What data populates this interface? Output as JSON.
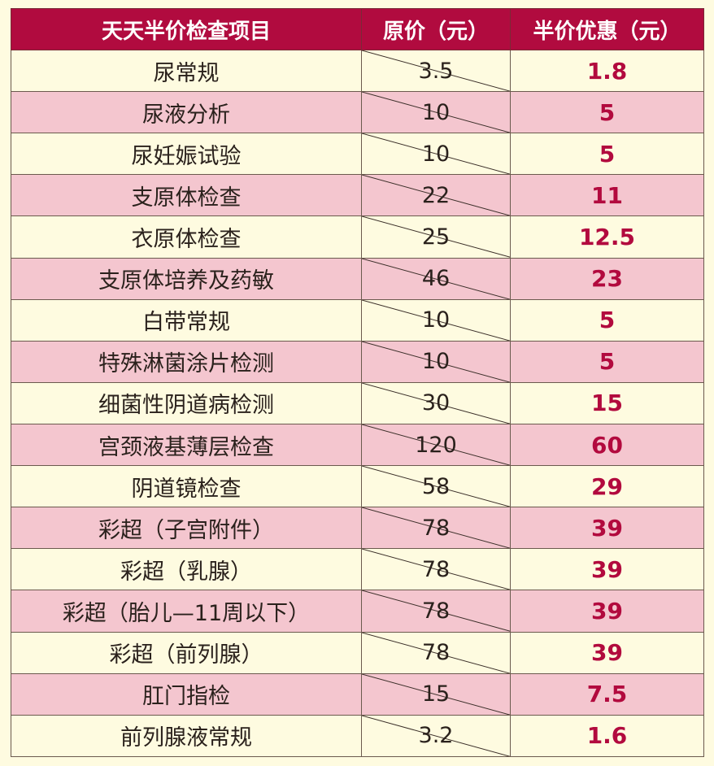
{
  "header": {
    "col_item": "天天半价检查项目",
    "col_original": "原价（元）",
    "col_half": "半价优惠（元）"
  },
  "colors": {
    "header_bg": "#b10b3f",
    "row_light": "#fefbe0",
    "row_pink": "#f4c6cf",
    "half_price_text": "#b20a3e"
  },
  "rows": [
    {
      "name": "尿常规",
      "original": "3.5",
      "half": "1.8"
    },
    {
      "name": "尿液分析",
      "original": "10",
      "half": "5"
    },
    {
      "name": "尿妊娠试验",
      "original": "10",
      "half": "5"
    },
    {
      "name": "支原体检查",
      "original": "22",
      "half": "11"
    },
    {
      "name": "衣原体检查",
      "original": "25",
      "half": "12.5"
    },
    {
      "name": "支原体培养及药敏",
      "original": "46",
      "half": "23"
    },
    {
      "name": "白带常规",
      "original": "10",
      "half": "5"
    },
    {
      "name": "特殊淋菌涂片检测",
      "original": "10",
      "half": "5"
    },
    {
      "name": "细菌性阴道病检测",
      "original": "30",
      "half": "15"
    },
    {
      "name": "宫颈液基薄层检查",
      "original": "120",
      "half": "60"
    },
    {
      "name": "阴道镜检查",
      "original": "58",
      "half": "29"
    },
    {
      "name": "彩超（子宫附件）",
      "original": "78",
      "half": "39"
    },
    {
      "name": "彩超（乳腺）",
      "original": "78",
      "half": "39"
    },
    {
      "name": "彩超（胎儿—11周以下）",
      "original": "78",
      "half": "39"
    },
    {
      "name": "彩超（前列腺）",
      "original": "78",
      "half": "39"
    },
    {
      "name": "肛门指检",
      "original": "15",
      "half": "7.5"
    },
    {
      "name": "前列腺液常规",
      "original": "3.2",
      "half": "1.6"
    }
  ]
}
